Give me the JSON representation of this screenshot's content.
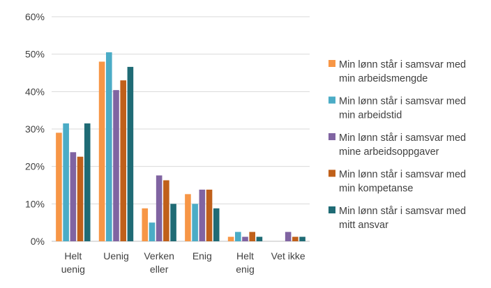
{
  "chart_data": {
    "type": "bar",
    "categories": [
      [
        "Helt",
        "uenig"
      ],
      [
        "Uenig"
      ],
      [
        "Verken",
        "eller"
      ],
      [
        "Enig"
      ],
      [
        "Helt",
        "enig"
      ],
      [
        "Vet ikke"
      ]
    ],
    "y_ticks": [
      "0%",
      "10%",
      "20%",
      "30%",
      "40%",
      "50%",
      "60%"
    ],
    "ylim": [
      0,
      60
    ],
    "grid": true,
    "legend_position": "right",
    "series": [
      {
        "name": [
          "Min lønn står i samsvar med",
          "min arbeidsmengde"
        ],
        "color": "#F79646",
        "values": [
          29,
          48,
          8.8,
          12.6,
          1.2,
          0
        ]
      },
      {
        "name": [
          "Min lønn står i samsvar med",
          "min arbeidstid"
        ],
        "color": "#4BACC6",
        "values": [
          31.5,
          50.5,
          5,
          10,
          2.5,
          0
        ]
      },
      {
        "name": [
          "Min lønn står i samsvar med",
          "mine arbeidsoppgaver"
        ],
        "color": "#8064A2",
        "values": [
          23.8,
          40.4,
          17.6,
          13.8,
          1.2,
          2.5
        ]
      },
      {
        "name": [
          "Min lønn står i samsvar med",
          "min kompetanse"
        ],
        "color": "#C0601A",
        "values": [
          22.6,
          43,
          16.3,
          13.8,
          2.5,
          1.2
        ]
      },
      {
        "name": [
          "Min lønn står i samsvar med",
          "mitt ansvar"
        ],
        "color": "#1F6B75",
        "values": [
          31.5,
          46.6,
          10,
          8.8,
          1.2,
          1.2
        ]
      }
    ]
  }
}
